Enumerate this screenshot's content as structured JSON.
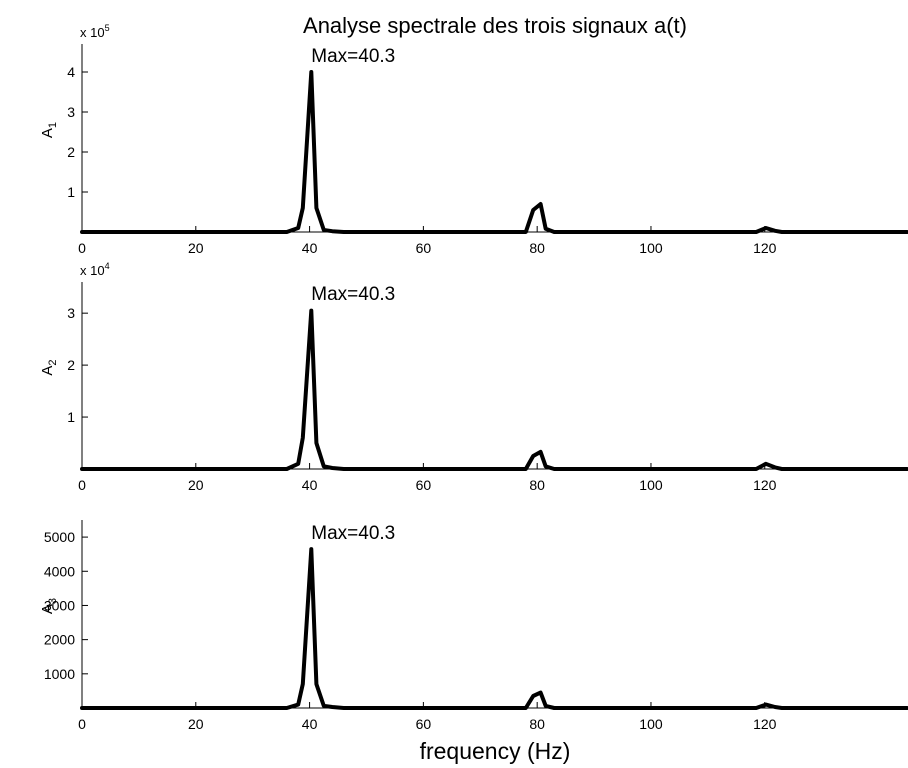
{
  "chart_data": {
    "type": "line",
    "title": "Analyse spectrale des trois signaux a(t)",
    "xlabel": "frequency (Hz)",
    "xlim": [
      0,
      145
    ],
    "xticks": [
      0,
      20,
      40,
      60,
      80,
      100,
      120
    ],
    "x": [
      0,
      36,
      38,
      38.8,
      40.3,
      41.2,
      42.5,
      44,
      46,
      78,
      79.3,
      80.6,
      81.5,
      83,
      118.5,
      120.2,
      121.8,
      123,
      145
    ],
    "panels": [
      {
        "ylabel": "A",
        "ylabel_sub": "1",
        "multiplier_base": "x 10",
        "multiplier_exp": "5",
        "ylim": [
          0,
          4.7
        ],
        "yticks": [
          1,
          2,
          3,
          4
        ],
        "values": [
          0,
          0,
          0.1,
          0.6,
          4.0,
          0.6,
          0.05,
          0.02,
          0,
          0,
          0.55,
          0.7,
          0.08,
          0,
          0,
          0.1,
          0.03,
          0,
          0
        ],
        "annotation": "Max=40.3",
        "annotation_x": 40.3,
        "annotation_y": 4.25
      },
      {
        "ylabel": "A",
        "ylabel_sub": "2",
        "multiplier_base": "x 10",
        "multiplier_exp": "4",
        "ylim": [
          0,
          3.6
        ],
        "yticks": [
          1,
          2,
          3
        ],
        "values": [
          0,
          0,
          0.1,
          0.6,
          3.05,
          0.5,
          0.05,
          0.02,
          0,
          0,
          0.25,
          0.33,
          0.05,
          0,
          0,
          0.1,
          0.03,
          0,
          0
        ],
        "annotation": "Max=40.3",
        "annotation_x": 40.3,
        "annotation_y": 3.25
      },
      {
        "ylabel": "A",
        "ylabel_sub": "3",
        "multiplier_base": "",
        "multiplier_exp": "",
        "ylim": [
          0,
          5500
        ],
        "yticks": [
          1000,
          2000,
          3000,
          4000,
          5000
        ],
        "values": [
          0,
          0,
          100,
          700,
          4650,
          700,
          60,
          30,
          0,
          0,
          350,
          450,
          60,
          0,
          0,
          100,
          30,
          0,
          0
        ],
        "annotation": "Max=40.3",
        "annotation_x": 40.3,
        "annotation_y": 4950
      }
    ]
  }
}
